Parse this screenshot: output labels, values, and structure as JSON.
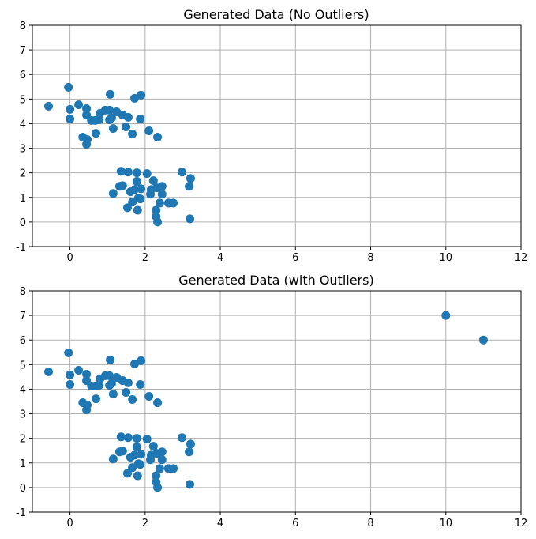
{
  "chart_data": [
    {
      "type": "scatter",
      "title": "Generated Data (No Outliers)",
      "xlabel": "",
      "ylabel": "",
      "xlim": [
        -1,
        12
      ],
      "ylim": [
        -1,
        8
      ],
      "xticks": [
        0,
        2,
        4,
        6,
        8,
        10,
        12
      ],
      "yticks": [
        -1,
        0,
        1,
        2,
        3,
        4,
        5,
        6,
        7,
        8
      ],
      "grid": true,
      "color": "#1f77b4",
      "points": [
        [
          -0.57,
          4.71
        ],
        [
          -0.04,
          5.48
        ],
        [
          0,
          4.58
        ],
        [
          0,
          4.19
        ],
        [
          0.23,
          4.77
        ],
        [
          0.44,
          4.61
        ],
        [
          0.44,
          4.35
        ],
        [
          0.34,
          3.45
        ],
        [
          0.44,
          3.16
        ],
        [
          0.46,
          3.35
        ],
        [
          0.57,
          4.13
        ],
        [
          0.67,
          4.13
        ],
        [
          0.69,
          3.61
        ],
        [
          0.8,
          4.42
        ],
        [
          0.78,
          4.16
        ],
        [
          0.94,
          4.55
        ],
        [
          1.05,
          4.55
        ],
        [
          1.05,
          4.16
        ],
        [
          1.07,
          5.19
        ],
        [
          1.15,
          3.8
        ],
        [
          1.11,
          4.23
        ],
        [
          1.24,
          4.48
        ],
        [
          1.4,
          4.35
        ],
        [
          1.55,
          4.26
        ],
        [
          1.49,
          3.87
        ],
        [
          1.66,
          3.58
        ],
        [
          1.72,
          5.03
        ],
        [
          1.89,
          5.16
        ],
        [
          1.87,
          4.19
        ],
        [
          2.1,
          3.71
        ],
        [
          2.33,
          3.45
        ],
        [
          1.36,
          2.06
        ],
        [
          1.55,
          2.03
        ],
        [
          1.78,
          2.0
        ],
        [
          2.05,
          1.97
        ],
        [
          2.98,
          2.03
        ],
        [
          3.21,
          1.77
        ],
        [
          3.17,
          1.45
        ],
        [
          2.22,
          1.68
        ],
        [
          1.78,
          1.65
        ],
        [
          1.32,
          1.45
        ],
        [
          1.4,
          1.48
        ],
        [
          1.15,
          1.16
        ],
        [
          1.61,
          1.23
        ],
        [
          1.72,
          1.32
        ],
        [
          1.89,
          1.35
        ],
        [
          2.16,
          1.32
        ],
        [
          2.14,
          1.13
        ],
        [
          2.31,
          1.39
        ],
        [
          2.45,
          1.45
        ],
        [
          2.45,
          1.13
        ],
        [
          1.82,
          0.97
        ],
        [
          1.87,
          0.94
        ],
        [
          2.62,
          0.77
        ],
        [
          2.75,
          0.77
        ],
        [
          2.39,
          0.77
        ],
        [
          1.66,
          0.81
        ],
        [
          1.53,
          0.58
        ],
        [
          1.8,
          0.48
        ],
        [
          2.29,
          0.48
        ],
        [
          2.29,
          0.23
        ],
        [
          2.33,
          0.0
        ],
        [
          3.19,
          0.13
        ]
      ]
    },
    {
      "type": "scatter",
      "title": "Generated Data (with Outliers)",
      "xlabel": "",
      "ylabel": "",
      "xlim": [
        -1,
        12
      ],
      "ylim": [
        -1,
        8
      ],
      "xticks": [
        0,
        2,
        4,
        6,
        8,
        10,
        12
      ],
      "yticks": [
        -1,
        0,
        1,
        2,
        3,
        4,
        5,
        6,
        7,
        8
      ],
      "grid": true,
      "color": "#1f77b4",
      "points": [
        [
          -0.57,
          4.71
        ],
        [
          -0.04,
          5.48
        ],
        [
          0,
          4.58
        ],
        [
          0,
          4.19
        ],
        [
          0.23,
          4.77
        ],
        [
          0.44,
          4.61
        ],
        [
          0.44,
          4.35
        ],
        [
          0.34,
          3.45
        ],
        [
          0.44,
          3.16
        ],
        [
          0.46,
          3.35
        ],
        [
          0.57,
          4.13
        ],
        [
          0.67,
          4.13
        ],
        [
          0.69,
          3.61
        ],
        [
          0.8,
          4.42
        ],
        [
          0.78,
          4.16
        ],
        [
          0.94,
          4.55
        ],
        [
          1.05,
          4.55
        ],
        [
          1.05,
          4.16
        ],
        [
          1.07,
          5.19
        ],
        [
          1.15,
          3.8
        ],
        [
          1.11,
          4.23
        ],
        [
          1.24,
          4.48
        ],
        [
          1.4,
          4.35
        ],
        [
          1.55,
          4.26
        ],
        [
          1.49,
          3.87
        ],
        [
          1.66,
          3.58
        ],
        [
          1.72,
          5.03
        ],
        [
          1.89,
          5.16
        ],
        [
          1.87,
          4.19
        ],
        [
          2.1,
          3.71
        ],
        [
          2.33,
          3.45
        ],
        [
          1.36,
          2.06
        ],
        [
          1.55,
          2.03
        ],
        [
          1.78,
          2.0
        ],
        [
          2.05,
          1.97
        ],
        [
          2.98,
          2.03
        ],
        [
          3.21,
          1.77
        ],
        [
          3.17,
          1.45
        ],
        [
          2.22,
          1.68
        ],
        [
          1.78,
          1.65
        ],
        [
          1.32,
          1.45
        ],
        [
          1.4,
          1.48
        ],
        [
          1.15,
          1.16
        ],
        [
          1.61,
          1.23
        ],
        [
          1.72,
          1.32
        ],
        [
          1.89,
          1.35
        ],
        [
          2.16,
          1.32
        ],
        [
          2.14,
          1.13
        ],
        [
          2.31,
          1.39
        ],
        [
          2.45,
          1.45
        ],
        [
          2.45,
          1.13
        ],
        [
          1.82,
          0.97
        ],
        [
          1.87,
          0.94
        ],
        [
          2.62,
          0.77
        ],
        [
          2.75,
          0.77
        ],
        [
          2.39,
          0.77
        ],
        [
          1.66,
          0.81
        ],
        [
          1.53,
          0.58
        ],
        [
          1.8,
          0.48
        ],
        [
          2.29,
          0.48
        ],
        [
          2.29,
          0.23
        ],
        [
          2.33,
          0.0
        ],
        [
          3.19,
          0.13
        ],
        [
          10,
          7
        ],
        [
          11,
          6
        ]
      ]
    }
  ]
}
